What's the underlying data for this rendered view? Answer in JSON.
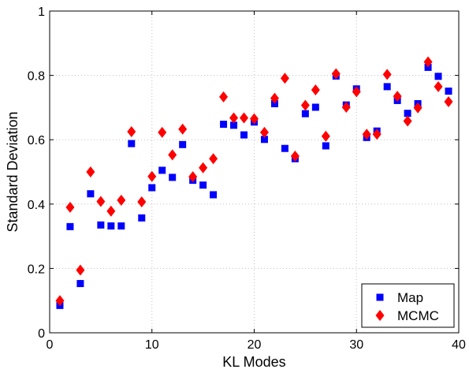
{
  "chart_data": {
    "type": "scatter",
    "xlabel": "KL Modes",
    "ylabel": "Standard Deviation",
    "xlim": [
      0,
      40
    ],
    "ylim": [
      0,
      1
    ],
    "x_ticks": [
      "0",
      "10",
      "20",
      "30",
      "40"
    ],
    "y_ticks": [
      "0",
      "0.2",
      "0.4",
      "0.6",
      "0.8",
      "1"
    ],
    "grid": true,
    "legend_position": "bottom-right",
    "x": [
      1,
      2,
      3,
      4,
      5,
      6,
      7,
      8,
      9,
      10,
      11,
      12,
      13,
      14,
      15,
      16,
      17,
      18,
      19,
      20,
      21,
      22,
      23,
      24,
      25,
      26,
      27,
      28,
      29,
      30,
      31,
      32,
      33,
      34,
      35,
      36,
      37,
      38,
      39
    ],
    "series": [
      {
        "name": "Map",
        "marker": "square",
        "color": "#0000ff",
        "values": [
          0.085,
          0.33,
          0.153,
          0.432,
          0.335,
          0.332,
          0.332,
          0.588,
          0.357,
          0.451,
          0.505,
          0.483,
          0.585,
          0.474,
          0.459,
          0.429,
          0.648,
          0.645,
          0.615,
          0.655,
          0.601,
          0.712,
          0.573,
          0.541,
          0.681,
          0.701,
          0.581,
          0.798,
          0.708,
          0.758,
          0.607,
          0.627,
          0.765,
          0.722,
          0.682,
          0.712,
          0.825,
          0.797,
          0.751
        ]
      },
      {
        "name": "MCMC",
        "marker": "diamond",
        "color": "#ff0000",
        "values": [
          0.1,
          0.39,
          0.195,
          0.5,
          0.408,
          0.378,
          0.412,
          0.625,
          0.407,
          0.486,
          0.623,
          0.553,
          0.633,
          0.485,
          0.513,
          0.541,
          0.733,
          0.668,
          0.668,
          0.665,
          0.623,
          0.729,
          0.791,
          0.549,
          0.707,
          0.755,
          0.611,
          0.805,
          0.701,
          0.749,
          0.617,
          0.617,
          0.803,
          0.735,
          0.658,
          0.699,
          0.842,
          0.765,
          0.718
        ]
      }
    ]
  }
}
